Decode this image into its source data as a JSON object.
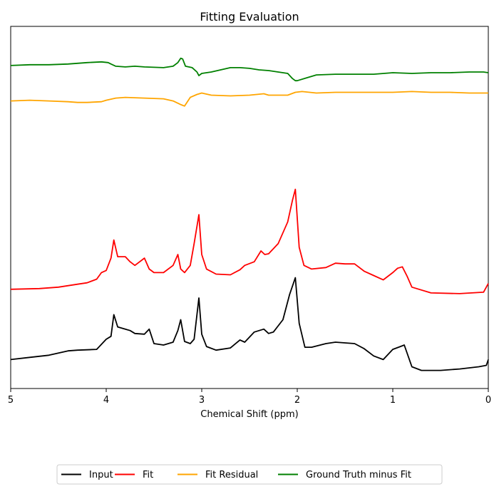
{
  "chart_data": {
    "type": "line",
    "title": "Fitting Evaluation",
    "xlabel": "Chemical Shift (ppm)",
    "ylabel": "",
    "x_reversed": true,
    "xlim": [
      5,
      0
    ],
    "x_ticks": [
      5,
      4,
      3,
      2,
      1,
      0
    ],
    "x_tick_labels": [
      "5",
      "4",
      "3",
      "2",
      "1",
      "0"
    ],
    "y_ticks_visible": false,
    "ylim": [
      -0.4,
      4.6
    ],
    "legend_position": "bottom-center, outside plot",
    "series": [
      {
        "name": "Input",
        "color": "#000000",
        "x": [
          5.0,
          4.8,
          4.6,
          4.4,
          4.3,
          4.1,
          4.0,
          3.95,
          3.92,
          3.88,
          3.8,
          3.75,
          3.7,
          3.6,
          3.55,
          3.5,
          3.4,
          3.3,
          3.25,
          3.22,
          3.18,
          3.12,
          3.08,
          3.03,
          3.0,
          2.95,
          2.85,
          2.7,
          2.6,
          2.55,
          2.45,
          2.35,
          2.3,
          2.25,
          2.15,
          2.08,
          2.02,
          1.98,
          1.92,
          1.85,
          1.7,
          1.6,
          1.5,
          1.4,
          1.3,
          1.2,
          1.1,
          1.0,
          0.92,
          0.88,
          0.8,
          0.7,
          0.5,
          0.3,
          0.1,
          0.02,
          0.0
        ],
        "values": [
          0.0,
          0.03,
          0.06,
          0.12,
          0.13,
          0.14,
          0.28,
          0.32,
          0.62,
          0.45,
          0.42,
          0.4,
          0.36,
          0.35,
          0.42,
          0.22,
          0.2,
          0.24,
          0.4,
          0.55,
          0.25,
          0.22,
          0.28,
          0.85,
          0.35,
          0.18,
          0.13,
          0.16,
          0.27,
          0.24,
          0.38,
          0.42,
          0.36,
          0.38,
          0.55,
          0.9,
          1.13,
          0.5,
          0.17,
          0.17,
          0.22,
          0.24,
          0.23,
          0.22,
          0.15,
          0.05,
          0.0,
          0.14,
          0.18,
          0.2,
          -0.1,
          -0.15,
          -0.15,
          -0.13,
          -0.1,
          -0.08,
          0.0
        ]
      },
      {
        "name": "Fit",
        "color": "#ff0000",
        "x": [
          5.0,
          4.7,
          4.5,
          4.3,
          4.2,
          4.1,
          4.05,
          4.0,
          3.95,
          3.92,
          3.88,
          3.8,
          3.75,
          3.7,
          3.6,
          3.55,
          3.5,
          3.4,
          3.3,
          3.25,
          3.22,
          3.18,
          3.12,
          3.08,
          3.03,
          3.0,
          2.95,
          2.85,
          2.7,
          2.6,
          2.55,
          2.45,
          2.38,
          2.34,
          2.3,
          2.2,
          2.1,
          2.05,
          2.02,
          1.98,
          1.93,
          1.85,
          1.7,
          1.6,
          1.5,
          1.4,
          1.3,
          1.2,
          1.1,
          1.0,
          0.95,
          0.9,
          0.85,
          0.8,
          0.6,
          0.3,
          0.05,
          0.0
        ],
        "values": [
          0.97,
          0.98,
          1.0,
          1.04,
          1.06,
          1.11,
          1.2,
          1.23,
          1.4,
          1.65,
          1.42,
          1.42,
          1.35,
          1.3,
          1.4,
          1.25,
          1.2,
          1.2,
          1.3,
          1.45,
          1.25,
          1.2,
          1.3,
          1.6,
          2.0,
          1.45,
          1.25,
          1.18,
          1.17,
          1.24,
          1.3,
          1.35,
          1.5,
          1.45,
          1.46,
          1.6,
          1.9,
          2.2,
          2.35,
          1.55,
          1.3,
          1.25,
          1.27,
          1.33,
          1.32,
          1.32,
          1.22,
          1.16,
          1.1,
          1.2,
          1.26,
          1.28,
          1.15,
          1.0,
          0.92,
          0.91,
          0.93,
          1.05
        ]
      },
      {
        "name": "Fit Residual",
        "color": "#ffa500",
        "x": [
          5.0,
          4.8,
          4.6,
          4.4,
          4.3,
          4.2,
          4.05,
          4.0,
          3.9,
          3.8,
          3.6,
          3.4,
          3.3,
          3.22,
          3.18,
          3.12,
          3.05,
          3.0,
          2.9,
          2.7,
          2.5,
          2.35,
          2.3,
          2.1,
          2.02,
          1.95,
          1.8,
          1.6,
          1.4,
          1.2,
          1.0,
          0.8,
          0.6,
          0.4,
          0.2,
          0.0
        ],
        "values": [
          3.57,
          3.58,
          3.57,
          3.56,
          3.55,
          3.55,
          3.56,
          3.58,
          3.61,
          3.62,
          3.61,
          3.6,
          3.57,
          3.52,
          3.5,
          3.62,
          3.66,
          3.68,
          3.65,
          3.64,
          3.65,
          3.67,
          3.65,
          3.65,
          3.69,
          3.7,
          3.68,
          3.69,
          3.69,
          3.69,
          3.69,
          3.7,
          3.69,
          3.69,
          3.68,
          3.68
        ]
      },
      {
        "name": "Ground Truth minus Fit",
        "color": "#008000",
        "x": [
          5.0,
          4.8,
          4.6,
          4.4,
          4.2,
          4.05,
          3.98,
          3.95,
          3.9,
          3.8,
          3.7,
          3.6,
          3.4,
          3.3,
          3.25,
          3.22,
          3.2,
          3.17,
          3.1,
          3.05,
          3.03,
          3.0,
          2.9,
          2.7,
          2.6,
          2.5,
          2.4,
          2.3,
          2.2,
          2.1,
          2.05,
          2.02,
          2.0,
          1.9,
          1.8,
          1.6,
          1.4,
          1.2,
          1.0,
          0.8,
          0.6,
          0.4,
          0.2,
          0.05,
          0.0
        ],
        "values": [
          4.06,
          4.07,
          4.07,
          4.08,
          4.1,
          4.11,
          4.1,
          4.08,
          4.05,
          4.04,
          4.05,
          4.04,
          4.03,
          4.05,
          4.1,
          4.16,
          4.15,
          4.05,
          4.03,
          3.97,
          3.92,
          3.95,
          3.97,
          4.03,
          4.03,
          4.02,
          4.0,
          3.99,
          3.97,
          3.95,
          3.88,
          3.85,
          3.85,
          3.89,
          3.93,
          3.94,
          3.94,
          3.94,
          3.96,
          3.95,
          3.96,
          3.96,
          3.97,
          3.97,
          3.96
        ]
      }
    ]
  }
}
